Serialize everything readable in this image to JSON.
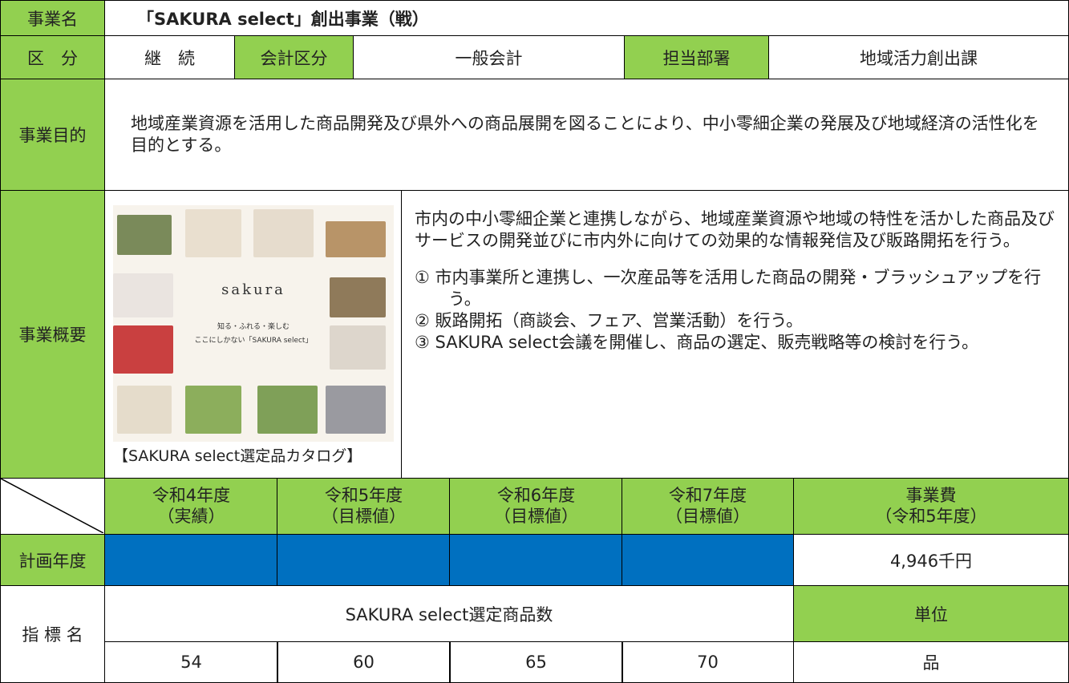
{
  "header": {
    "label": "事業名",
    "title": "「SAKURA select」創出事業（戦）"
  },
  "classification": {
    "label": "区　分",
    "value": "継　続",
    "account_label": "会計区分",
    "account": "一般会計",
    "dept_label": "担当部署",
    "dept": "地域活力創出課"
  },
  "purpose": {
    "label": "事業目的",
    "text": "地域産業資源を活用した商品開発及び県外への商品展開を図ることにより、中小零細企業の発展及び地域経済の活性化を目的とする。"
  },
  "overview": {
    "label": "事業概要",
    "text": "市内の中小零細企業と連携しながら、地域産業資源や地域の特性を活かした商品及びサービスの開発並びに市内外に向けての効果的な情報発信及び販路開拓を行う。",
    "items": [
      "①  市内事業所と連携し、一次産品等を活用した商品の開発・ブラッシュアップを行う。",
      "②  販路開拓（商談会、フェア、営業活動）を行う。",
      "③  SAKURA select会議を開催し、商品の選定、販売戦略等の検討を行う。"
    ],
    "image": {
      "brand": "sakura",
      "tagline": "知る・ふれる・楽しむ",
      "subline": "ここにしかない「SAKURA select」",
      "caption": "【SAKURA select選定品カタログ】"
    }
  },
  "periods": [
    {
      "line1": "令和4年度",
      "line2": "（実績）"
    },
    {
      "line1": "令和5年度",
      "line2": "（目標値）"
    },
    {
      "line1": "令和6年度",
      "line2": "（目標値）"
    },
    {
      "line1": "令和7年度",
      "line2": "（目標値）"
    },
    {
      "line1": "事業費",
      "line2": "（令和5年度）"
    }
  ],
  "plan": {
    "label": "計画年度",
    "cost": "4,946千円"
  },
  "indicator": {
    "label": "指 標 名",
    "name": "SAKURA select選定商品数",
    "unit_label": "単位",
    "values": [
      "54",
      "60",
      "65",
      "70"
    ],
    "unit": "品"
  }
}
